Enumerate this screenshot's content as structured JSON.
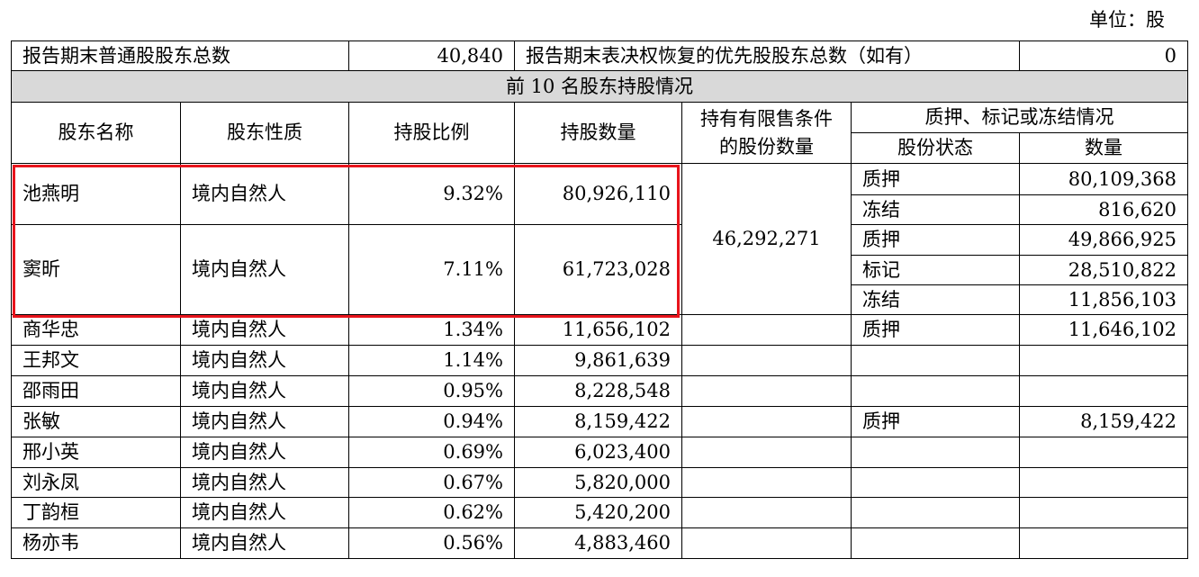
{
  "unit_label": "单位：股",
  "summary": {
    "common_label": "报告期末普通股股东总数",
    "common_value": "40,840",
    "preferred_label": "报告期末表决权恢复的优先股股东总数（如有）",
    "preferred_value": "0"
  },
  "section_title": "前 10 名股东持股情况",
  "headers": {
    "name": "股东名称",
    "nature": "股东性质",
    "ratio": "持股比例",
    "shares": "持股数量",
    "restricted": "持有有限售条件的股份数量",
    "pledge_group": "质押、标记或冻结情况",
    "status": "股份状态",
    "qty": "数量"
  },
  "rows": [
    {
      "name": "池燕明",
      "nature": "境内自然人",
      "ratio": "9.32%",
      "shares": "80,926,110",
      "restricted": "",
      "statuses": [
        {
          "status": "质押",
          "qty": "80,109,368"
        },
        {
          "status": "冻结",
          "qty": "816,620"
        }
      ]
    },
    {
      "name": "窦昕",
      "nature": "境内自然人",
      "ratio": "7.11%",
      "shares": "61,723,028",
      "restricted": "46,292,271",
      "statuses": [
        {
          "status": "质押",
          "qty": "49,866,925"
        },
        {
          "status": "标记",
          "qty": "28,510,822"
        },
        {
          "status": "冻结",
          "qty": "11,856,103"
        }
      ]
    },
    {
      "name": "商华忠",
      "nature": "境内自然人",
      "ratio": "1.34%",
      "shares": "11,656,102",
      "restricted": "",
      "statuses": [
        {
          "status": "质押",
          "qty": "11,646,102"
        }
      ]
    },
    {
      "name": "王邦文",
      "nature": "境内自然人",
      "ratio": "1.14%",
      "shares": "9,861,639",
      "restricted": "",
      "statuses": [
        {
          "status": "",
          "qty": ""
        }
      ]
    },
    {
      "name": "邵雨田",
      "nature": "境内自然人",
      "ratio": "0.95%",
      "shares": "8,228,548",
      "restricted": "",
      "statuses": [
        {
          "status": "",
          "qty": ""
        }
      ]
    },
    {
      "name": "张敏",
      "nature": "境内自然人",
      "ratio": "0.94%",
      "shares": "8,159,422",
      "restricted": "",
      "statuses": [
        {
          "status": "质押",
          "qty": "8,159,422"
        }
      ]
    },
    {
      "name": "邢小英",
      "nature": "境内自然人",
      "ratio": "0.69%",
      "shares": "6,023,400",
      "restricted": "",
      "statuses": [
        {
          "status": "",
          "qty": ""
        }
      ]
    },
    {
      "name": "刘永凤",
      "nature": "境内自然人",
      "ratio": "0.67%",
      "shares": "5,820,000",
      "restricted": "",
      "statuses": [
        {
          "status": "",
          "qty": ""
        }
      ]
    },
    {
      "name": "丁韵桓",
      "nature": "境内自然人",
      "ratio": "0.62%",
      "shares": "5,420,200",
      "restricted": "",
      "statuses": [
        {
          "status": "",
          "qty": ""
        }
      ]
    },
    {
      "name": "杨亦韦",
      "nature": "境内自然人",
      "ratio": "0.56%",
      "shares": "4,883,460",
      "restricted": "",
      "statuses": [
        {
          "status": "",
          "qty": ""
        }
      ]
    }
  ],
  "highlight_color": "#e8141c"
}
